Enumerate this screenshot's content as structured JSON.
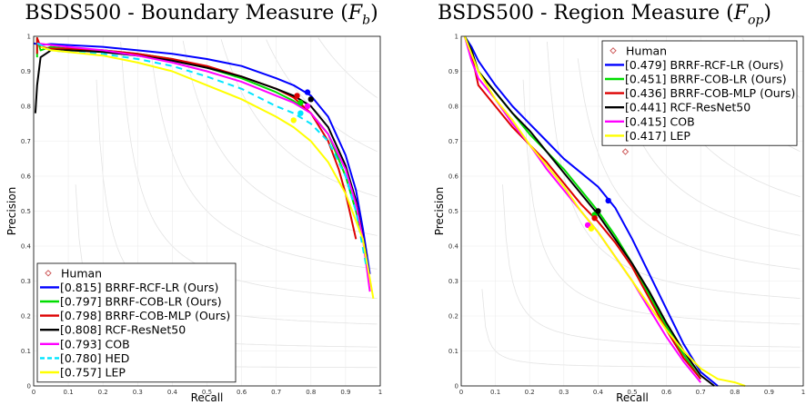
{
  "chart_data": [
    {
      "type": "line",
      "title": "BSDS500 - Boundary Measure (F_b)",
      "title_text": "BSDS500 - Boundary Measure (",
      "title_var": "F",
      "title_sub": "b",
      "title_close": ")",
      "xlabel": "Recall",
      "ylabel": "Precision",
      "xlim": [
        0,
        1
      ],
      "ylim": [
        0,
        1
      ],
      "xticks": [
        "0",
        "0.1",
        "0.2",
        "0.3",
        "0.4",
        "0.5",
        "0.6",
        "0.7",
        "0.8",
        "0.9",
        "1"
      ],
      "yticks": [
        "0",
        "0.1",
        "0.2",
        "0.3",
        "0.4",
        "0.5",
        "0.6",
        "0.7",
        "0.8",
        "0.9",
        "1"
      ],
      "grid": true,
      "legend_position": "bottom-left",
      "human_label": "Human",
      "human_point": null,
      "series": [
        {
          "name": "[0.815] BRRF-RCF-LR (Ours)",
          "color": "#0000ff",
          "dash": false,
          "x": [
            0.0,
            0.02,
            0.05,
            0.1,
            0.2,
            0.3,
            0.4,
            0.5,
            0.6,
            0.7,
            0.75,
            0.8,
            0.85,
            0.9,
            0.93,
            0.95,
            0.97
          ],
          "y": [
            0.98,
            0.975,
            0.978,
            0.975,
            0.97,
            0.96,
            0.95,
            0.935,
            0.915,
            0.88,
            0.86,
            0.83,
            0.77,
            0.66,
            0.56,
            0.45,
            0.32
          ],
          "marker": [
            0.79,
            0.84
          ]
        },
        {
          "name": "[0.797] BRRF-COB-LR (Ours)",
          "color": "#00dd00",
          "dash": false,
          "x": [
            0.01,
            0.01,
            0.02,
            0.05,
            0.1,
            0.2,
            0.3,
            0.4,
            0.5,
            0.6,
            0.7,
            0.75,
            0.8,
            0.85,
            0.9,
            0.93,
            0.95
          ],
          "y": [
            0.94,
            0.995,
            0.96,
            0.97,
            0.965,
            0.96,
            0.95,
            0.935,
            0.91,
            0.88,
            0.84,
            0.815,
            0.78,
            0.72,
            0.6,
            0.5,
            0.42
          ],
          "marker": [
            0.77,
            0.81
          ]
        },
        {
          "name": "[0.798] BRRF-COB-MLP (Ours)",
          "color": "#dd0000",
          "dash": false,
          "x": [
            0.01,
            0.01,
            0.02,
            0.05,
            0.1,
            0.2,
            0.3,
            0.4,
            0.5,
            0.6,
            0.7,
            0.75,
            0.8,
            0.85,
            0.88,
            0.9,
            0.93
          ],
          "y": [
            0.95,
            0.995,
            0.97,
            0.965,
            0.965,
            0.96,
            0.95,
            0.935,
            0.915,
            0.885,
            0.85,
            0.825,
            0.78,
            0.7,
            0.62,
            0.55,
            0.42
          ],
          "marker": [
            0.76,
            0.83
          ]
        },
        {
          "name": "[0.808] RCF-ResNet50",
          "color": "#000000",
          "dash": false,
          "x": [
            0.005,
            0.01,
            0.02,
            0.05,
            0.1,
            0.2,
            0.3,
            0.4,
            0.5,
            0.6,
            0.7,
            0.75,
            0.8,
            0.85,
            0.9,
            0.93,
            0.96
          ],
          "y": [
            0.78,
            0.86,
            0.94,
            0.96,
            0.96,
            0.955,
            0.945,
            0.93,
            0.91,
            0.885,
            0.85,
            0.83,
            0.8,
            0.74,
            0.63,
            0.53,
            0.37
          ],
          "marker": [
            0.8,
            0.82
          ]
        },
        {
          "name": "[0.793] COB",
          "color": "#ff00ff",
          "dash": false,
          "x": [
            0.01,
            0.05,
            0.1,
            0.2,
            0.3,
            0.4,
            0.5,
            0.6,
            0.7,
            0.75,
            0.8,
            0.85,
            0.9,
            0.93,
            0.95,
            0.97
          ],
          "y": [
            0.98,
            0.975,
            0.97,
            0.96,
            0.945,
            0.925,
            0.9,
            0.87,
            0.83,
            0.81,
            0.78,
            0.72,
            0.62,
            0.52,
            0.42,
            0.27
          ],
          "marker": [
            0.79,
            0.8
          ]
        },
        {
          "name": "[0.780] HED",
          "color": "#00e5ff",
          "dash": true,
          "x": [
            0.01,
            0.05,
            0.1,
            0.2,
            0.3,
            0.4,
            0.5,
            0.6,
            0.7,
            0.75,
            0.8,
            0.85,
            0.9,
            0.93,
            0.96
          ],
          "y": [
            0.98,
            0.96,
            0.955,
            0.95,
            0.935,
            0.915,
            0.885,
            0.85,
            0.8,
            0.78,
            0.75,
            0.7,
            0.6,
            0.5,
            0.34
          ],
          "marker": [
            0.77,
            0.78
          ]
        },
        {
          "name": "[0.757] LEP",
          "color": "#ffff00",
          "dash": false,
          "x": [
            0.02,
            0.05,
            0.1,
            0.2,
            0.3,
            0.4,
            0.5,
            0.6,
            0.7,
            0.75,
            0.8,
            0.85,
            0.9,
            0.95,
            0.98
          ],
          "y": [
            0.97,
            0.96,
            0.955,
            0.945,
            0.925,
            0.9,
            0.86,
            0.82,
            0.77,
            0.74,
            0.7,
            0.64,
            0.55,
            0.42,
            0.25
          ],
          "marker": [
            0.75,
            0.76
          ]
        }
      ]
    },
    {
      "type": "line",
      "title": "BSDS500 - Region Measure (F_op)",
      "title_text": "BSDS500 - Region Measure (",
      "title_var": "F",
      "title_sub": "op",
      "title_close": ")",
      "xlabel": "Recall",
      "ylabel": "Precision",
      "xlim": [
        0,
        1
      ],
      "ylim": [
        0,
        1
      ],
      "xticks": [
        "0",
        "0.1",
        "0.2",
        "0.3",
        "0.4",
        "0.5",
        "0.6",
        "0.7",
        "0.8",
        "0.9",
        "1"
      ],
      "yticks": [
        "0",
        "0.1",
        "0.2",
        "0.3",
        "0.4",
        "0.5",
        "0.6",
        "0.7",
        "0.8",
        "0.9",
        "1"
      ],
      "grid": true,
      "legend_position": "top-right",
      "human_label": "Human",
      "human_point": [
        0.48,
        0.67
      ],
      "series": [
        {
          "name": "[0.479] BRRF-RCF-LR (Ours)",
          "color": "#0000ff",
          "dash": false,
          "x": [
            0.01,
            0.03,
            0.05,
            0.1,
            0.15,
            0.2,
            0.25,
            0.3,
            0.35,
            0.4,
            0.45,
            0.5,
            0.55,
            0.6,
            0.65,
            0.7,
            0.75
          ],
          "y": [
            1.0,
            0.97,
            0.93,
            0.86,
            0.8,
            0.75,
            0.7,
            0.65,
            0.61,
            0.57,
            0.51,
            0.42,
            0.32,
            0.22,
            0.12,
            0.04,
            0.0
          ],
          "marker": [
            0.43,
            0.53
          ]
        },
        {
          "name": "[0.451] BRRF-COB-LR (Ours)",
          "color": "#00dd00",
          "dash": false,
          "x": [
            0.01,
            0.03,
            0.05,
            0.1,
            0.15,
            0.2,
            0.25,
            0.3,
            0.35,
            0.4,
            0.45,
            0.5,
            0.55,
            0.6,
            0.65,
            0.7
          ],
          "y": [
            1.0,
            0.96,
            0.9,
            0.84,
            0.78,
            0.72,
            0.67,
            0.62,
            0.56,
            0.5,
            0.43,
            0.35,
            0.26,
            0.17,
            0.09,
            0.02
          ],
          "marker": [
            0.39,
            0.49
          ]
        },
        {
          "name": "[0.436] BRRF-COB-MLP (Ours)",
          "color": "#dd0000",
          "dash": false,
          "x": [
            0.01,
            0.03,
            0.05,
            0.1,
            0.15,
            0.2,
            0.25,
            0.3,
            0.35,
            0.4,
            0.45,
            0.5,
            0.55,
            0.6,
            0.65,
            0.7
          ],
          "y": [
            1.0,
            0.95,
            0.86,
            0.8,
            0.74,
            0.69,
            0.64,
            0.58,
            0.52,
            0.47,
            0.41,
            0.34,
            0.25,
            0.16,
            0.08,
            0.02
          ],
          "marker": [
            0.39,
            0.48
          ]
        },
        {
          "name": "[0.441] RCF-ResNet50",
          "color": "#000000",
          "dash": false,
          "x": [
            0.01,
            0.03,
            0.05,
            0.1,
            0.15,
            0.2,
            0.25,
            0.3,
            0.35,
            0.4,
            0.45,
            0.5,
            0.55,
            0.6,
            0.65,
            0.7,
            0.74
          ],
          "y": [
            1.0,
            0.96,
            0.9,
            0.84,
            0.78,
            0.73,
            0.67,
            0.61,
            0.55,
            0.49,
            0.42,
            0.35,
            0.27,
            0.18,
            0.1,
            0.03,
            0.0
          ],
          "marker": [
            0.4,
            0.5
          ]
        },
        {
          "name": "[0.415] COB",
          "color": "#ff00ff",
          "dash": false,
          "x": [
            0.01,
            0.03,
            0.05,
            0.1,
            0.15,
            0.2,
            0.25,
            0.3,
            0.35,
            0.4,
            0.45,
            0.5,
            0.55,
            0.6,
            0.65,
            0.7
          ],
          "y": [
            1.0,
            0.93,
            0.88,
            0.82,
            0.75,
            0.69,
            0.62,
            0.56,
            0.5,
            0.44,
            0.37,
            0.3,
            0.22,
            0.14,
            0.07,
            0.01
          ],
          "marker": [
            0.37,
            0.46
          ]
        },
        {
          "name": "[0.417] LEP",
          "color": "#ffff00",
          "dash": false,
          "x": [
            0.01,
            0.03,
            0.05,
            0.1,
            0.15,
            0.2,
            0.25,
            0.3,
            0.35,
            0.4,
            0.45,
            0.5,
            0.55,
            0.6,
            0.65,
            0.7,
            0.75,
            0.8,
            0.83
          ],
          "y": [
            1.0,
            0.95,
            0.9,
            0.82,
            0.76,
            0.69,
            0.63,
            0.57,
            0.5,
            0.44,
            0.37,
            0.3,
            0.23,
            0.16,
            0.1,
            0.05,
            0.02,
            0.01,
            0.0
          ],
          "marker": [
            0.38,
            0.45
          ]
        }
      ]
    }
  ]
}
